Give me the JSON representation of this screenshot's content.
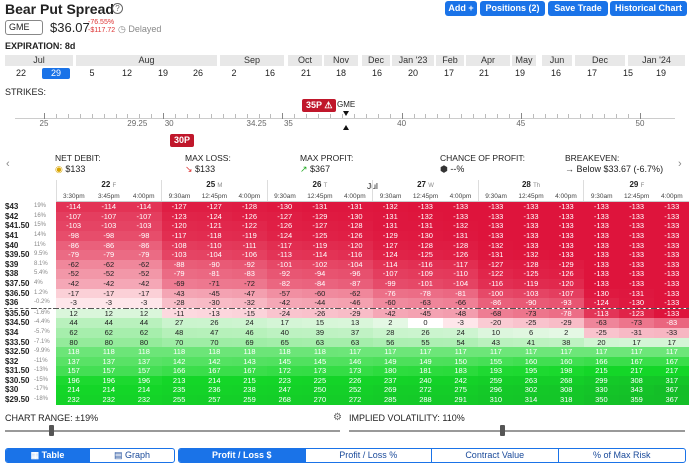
{
  "header": {
    "title": "Bear Put Spread",
    "symbol": "GME",
    "price": "$36.07",
    "change_pct": "-76.55%",
    "change_amt": "-$117.72",
    "delayed": "Delayed",
    "buttons": [
      "Add +",
      "Positions (2)",
      "Save Trade",
      "Historical Chart"
    ]
  },
  "expiration": {
    "label": "EXPIRATION: 8d",
    "months": [
      {
        "label": "Jul"
      },
      {
        "label": "Aug"
      },
      {
        "label": "Sep"
      },
      {
        "label": "Oct"
      },
      {
        "label": "Nov"
      },
      {
        "label": "Dec"
      },
      {
        "label": "Jan '23"
      },
      {
        "label": "Feb"
      },
      {
        "label": "Apr"
      },
      {
        "label": "May"
      },
      {
        "label": "Jun"
      },
      {
        "label": "Dec"
      },
      {
        "label": "Jan '24"
      }
    ],
    "dates": [
      "22",
      "29",
      "5",
      "12",
      "19",
      "26",
      "2",
      "16",
      "21",
      "18",
      "16",
      "20",
      "17",
      "21",
      "19",
      "16",
      "17",
      "15",
      "19"
    ],
    "selected_index": 1
  },
  "strikes": {
    "label": "STRIKES:",
    "labels": [
      "25",
      "29.25",
      "30",
      "34.25",
      "35",
      "40",
      "45",
      "50"
    ],
    "ticker": "GME",
    "short_leg": "35P",
    "long_leg": "30P"
  },
  "stats": [
    {
      "label": "NET DEBIT:",
      "value": "$133",
      "icon": "coins-icon"
    },
    {
      "label": "MAX LOSS:",
      "value": "$133",
      "icon": "arrow-down-icon"
    },
    {
      "label": "MAX PROFIT:",
      "value": "$367",
      "icon": "arrow-up-icon"
    },
    {
      "label": "CHANCE OF PROFIT:",
      "value": "--%",
      "icon": "dice-icon"
    },
    {
      "label": "BREAKEVEN:",
      "value": "Below $33.67 (-6.7%)",
      "icon": "arrow-right-icon"
    }
  ],
  "grid": {
    "month": "Jul",
    "days": [
      {
        "num": "22",
        "dow": "F"
      },
      {
        "num": "25",
        "dow": "M"
      },
      {
        "num": "26",
        "dow": "T"
      },
      {
        "num": "27",
        "dow": "W"
      },
      {
        "num": "28",
        "dow": "Th"
      },
      {
        "num": "29",
        "dow": "F"
      }
    ],
    "times": [
      "3:30pm",
      "3:45pm",
      "4:00pm",
      "9:30am",
      "12:45pm",
      "4:00pm",
      "9:30am",
      "12:45pm",
      "4:00pm",
      "9:30am",
      "12:45pm",
      "4:00pm",
      "9:30am",
      "12:45pm",
      "4:00pm",
      "9:30am",
      "12:45pm",
      "4:00pm"
    ],
    "rows": [
      {
        "strike": "$43",
        "pct": "19%",
        "v": [
          -114,
          -114,
          -114,
          -127,
          -127,
          -128,
          -130,
          -131,
          -131,
          -132,
          -133,
          -133,
          -133,
          -133,
          -133,
          -133,
          -133,
          -133
        ]
      },
      {
        "strike": "$42",
        "pct": "16%",
        "v": [
          -107,
          -107,
          -107,
          -123,
          -124,
          -126,
          -127,
          -129,
          -130,
          -131,
          -132,
          -133,
          -133,
          -133,
          -133,
          -133,
          -133,
          -133
        ]
      },
      {
        "strike": "$41.50",
        "pct": "15%",
        "v": [
          -103,
          -103,
          -103,
          -120,
          -121,
          -122,
          -126,
          -127,
          -128,
          -131,
          -131,
          -132,
          -133,
          -133,
          -133,
          -133,
          -133,
          -133
        ]
      },
      {
        "strike": "$41",
        "pct": "14%",
        "v": [
          -98,
          -98,
          -98,
          -117,
          -118,
          -119,
          -124,
          -125,
          -126,
          -129,
          -130,
          -131,
          -133,
          -133,
          -133,
          -133,
          -133,
          -133
        ]
      },
      {
        "strike": "$40",
        "pct": "11%",
        "v": [
          -86,
          -86,
          -86,
          -108,
          -110,
          -111,
          -117,
          -119,
          -120,
          -127,
          -128,
          -128,
          -132,
          -133,
          -133,
          -133,
          -133,
          -133
        ]
      },
      {
        "strike": "$39.50",
        "pct": "9.5%",
        "v": [
          -79,
          -79,
          -79,
          -103,
          -104,
          -106,
          -113,
          -114,
          -116,
          -124,
          -125,
          -126,
          -131,
          -132,
          -133,
          -133,
          -133,
          -133
        ]
      },
      {
        "strike": "$39",
        "pct": "8.1%",
        "v": [
          -62,
          -62,
          -62,
          -88,
          -90,
          -92,
          -101,
          -102,
          -104,
          -114,
          -116,
          -117,
          -127,
          -128,
          -129,
          -133,
          -133,
          -133
        ]
      },
      {
        "strike": "$38",
        "pct": "5.4%",
        "v": [
          -52,
          -52,
          -52,
          -79,
          -81,
          -83,
          -92,
          -94,
          -96,
          -107,
          -109,
          -110,
          -122,
          -125,
          -126,
          -133,
          -133,
          -133
        ]
      },
      {
        "strike": "$37.50",
        "pct": "4%",
        "v": [
          -42,
          -42,
          -42,
          -69,
          -71,
          -72,
          -82,
          -84,
          -87,
          -99,
          -101,
          -104,
          -116,
          -119,
          -120,
          -133,
          -133,
          -133
        ]
      },
      {
        "strike": "$36.50",
        "pct": "1.2%",
        "v": [
          -17,
          -17,
          -17,
          -43,
          -45,
          -47,
          -57,
          -60,
          -62,
          -76,
          -78,
          -81,
          -100,
          -103,
          -107,
          -130,
          -131,
          -133
        ]
      },
      {
        "strike": "$36",
        "pct": "-0.2%",
        "v": [
          -3,
          -3,
          -3,
          -28,
          -30,
          -32,
          -42,
          -44,
          -46,
          -60,
          -63,
          -66,
          -86,
          -90,
          -93,
          -124,
          -130,
          -133
        ]
      },
      {
        "strike": "$35.50",
        "pct": "-1.6%",
        "v": [
          12,
          12,
          12,
          -11,
          -13,
          -15,
          -24,
          -26,
          -29,
          -42,
          -45,
          -48,
          -68,
          -73,
          -78,
          -113,
          -123,
          -133
        ]
      },
      {
        "strike": "$34.50",
        "pct": "-4.4%",
        "v": [
          44,
          44,
          44,
          27,
          26,
          24,
          17,
          15,
          13,
          2,
          0,
          -3,
          -20,
          -25,
          -29,
          -63,
          -73,
          -83
        ]
      },
      {
        "strike": "$34",
        "pct": "-5.7%",
        "v": [
          62,
          62,
          62,
          48,
          47,
          46,
          40,
          39,
          37,
          28,
          26,
          24,
          10,
          6,
          2,
          -25,
          -31,
          -33
        ]
      },
      {
        "strike": "$33.50",
        "pct": "-7.1%",
        "v": [
          80,
          80,
          80,
          70,
          70,
          69,
          65,
          63,
          63,
          56,
          55,
          54,
          43,
          41,
          38,
          20,
          17,
          17
        ]
      },
      {
        "strike": "$32.50",
        "pct": "-9.9%",
        "v": [
          118,
          118,
          118,
          118,
          118,
          118,
          118,
          118,
          117,
          117,
          117,
          117,
          117,
          117,
          117,
          117,
          117,
          117
        ]
      },
      {
        "strike": "$32",
        "pct": "-11%",
        "v": [
          137,
          137,
          137,
          142,
          142,
          143,
          145,
          145,
          146,
          149,
          149,
          150,
          155,
          160,
          160,
          166,
          167,
          167
        ]
      },
      {
        "strike": "$31.50",
        "pct": "-13%",
        "v": [
          157,
          157,
          157,
          166,
          167,
          167,
          172,
          173,
          173,
          180,
          181,
          183,
          193,
          195,
          198,
          215,
          217,
          217
        ]
      },
      {
        "strike": "$30.50",
        "pct": "-15%",
        "v": [
          196,
          196,
          196,
          213,
          214,
          215,
          223,
          225,
          226,
          237,
          240,
          242,
          259,
          263,
          268,
          299,
          308,
          317
        ]
      },
      {
        "strike": "$30",
        "pct": "-17%",
        "v": [
          214,
          214,
          214,
          235,
          236,
          238,
          247,
          250,
          252,
          269,
          272,
          275,
          296,
          302,
          308,
          330,
          343,
          367
        ]
      },
      {
        "strike": "$29.50",
        "pct": "-18%",
        "v": [
          232,
          232,
          232,
          255,
          257,
          259,
          268,
          270,
          272,
          285,
          288,
          291,
          310,
          314,
          318,
          350,
          359,
          367
        ]
      }
    ]
  },
  "controls": {
    "chart_range": "CHART RANGE: ±19%",
    "chart_range_level": 0.13,
    "implied_vol": "IMPLIED VOLATILITY: 110%",
    "implied_vol_level": 0.45
  },
  "tabs": {
    "view": [
      "Table",
      "Graph"
    ],
    "metric": [
      "Profit / Loss $",
      "Profit / Loss %",
      "Contract Value",
      "% of Max Risk"
    ]
  }
}
